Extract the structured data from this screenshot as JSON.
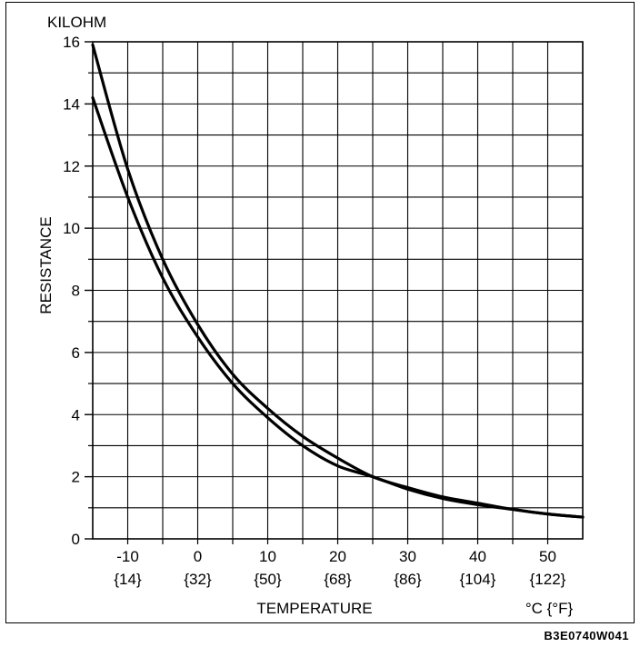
{
  "chart_data": {
    "type": "line",
    "ylabel": "RESISTANCE",
    "yunit": "KILOHM",
    "xlabel": "TEMPERATURE",
    "xunit": "°C {°F}",
    "xlim": [
      -15,
      55
    ],
    "ylim": [
      0,
      16
    ],
    "grid": true,
    "y_ticks": [
      0,
      2,
      4,
      6,
      8,
      10,
      12,
      14,
      16
    ],
    "x_ticks": [
      -10,
      0,
      10,
      20,
      30,
      40,
      50
    ],
    "x_tick_labels_c": [
      "-10",
      "0",
      "10",
      "20",
      "30",
      "40",
      "50"
    ],
    "x_tick_labels_f": [
      "{14}",
      "{32}",
      "{50}",
      "{68}",
      "{86}",
      "{104}",
      "{122}"
    ],
    "series": [
      {
        "x": [
          -15,
          -10,
          -5,
          0,
          5,
          10,
          15,
          20,
          25,
          30,
          35,
          40,
          45,
          50,
          55
        ],
        "y": [
          15.9,
          11.9,
          9.0,
          6.9,
          5.3,
          4.2,
          3.3,
          2.6,
          2.0,
          1.65,
          1.35,
          1.15,
          0.95,
          0.8,
          0.7
        ]
      },
      {
        "x": [
          -15,
          -10,
          -5,
          0,
          5,
          10,
          15,
          20,
          25,
          30,
          35,
          40,
          45,
          50,
          55
        ],
        "y": [
          14.2,
          11.0,
          8.4,
          6.5,
          5.0,
          3.9,
          3.0,
          2.35,
          2.0,
          1.6,
          1.3,
          1.1,
          0.95,
          0.8,
          0.7
        ]
      }
    ]
  },
  "figure_code": "B3E0740W041"
}
